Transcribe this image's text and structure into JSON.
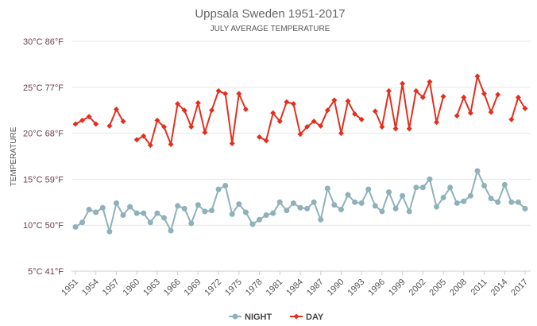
{
  "chart_data": {
    "type": "line",
    "title": "Uppsala Sweden 1951-2017",
    "subtitle": "JULY AVERAGE TEMPERATURE",
    "ylabel": "TEMPERATURE",
    "xlabel": "",
    "ylim": [
      5,
      30
    ],
    "yticks": [
      {
        "value": 5,
        "label": "5°C 41°F"
      },
      {
        "value": 10,
        "label": "10°C 50°F"
      },
      {
        "value": 15,
        "label": "15°C 59°F"
      },
      {
        "value": 20,
        "label": "20°C 68°F"
      },
      {
        "value": 25,
        "label": "25°C 77°F"
      },
      {
        "value": 30,
        "label": "30°C 86°F"
      }
    ],
    "xticks": [
      1951,
      1954,
      1957,
      1960,
      1963,
      1966,
      1969,
      1972,
      1975,
      1978,
      1981,
      1984,
      1987,
      1990,
      1993,
      1996,
      1999,
      2002,
      2005,
      2008,
      2011,
      2014,
      2017
    ],
    "grid": "horizontal",
    "legend_position": "bottom",
    "x_start": 1951,
    "series": [
      {
        "name": "NIGHT",
        "color": "#8fb1b9",
        "marker": "circle",
        "values": [
          9.8,
          10.3,
          11.7,
          11.4,
          11.9,
          9.3,
          12.4,
          11.1,
          12.0,
          11.3,
          11.3,
          10.3,
          11.3,
          10.8,
          9.4,
          12.1,
          11.8,
          10.2,
          12.2,
          11.5,
          11.6,
          13.9,
          14.3,
          11.2,
          12.3,
          11.4,
          10.1,
          10.6,
          11.1,
          11.3,
          12.5,
          11.6,
          12.4,
          11.9,
          11.8,
          12.5,
          10.6,
          14.0,
          12.2,
          11.7,
          13.3,
          12.5,
          12.4,
          13.9,
          12.1,
          11.5,
          13.6,
          11.8,
          13.2,
          11.5,
          14.1,
          14.1,
          15.0,
          12.0,
          13.0,
          14.1,
          12.4,
          12.6,
          13.2,
          15.9,
          14.3,
          12.9,
          12.5,
          14.4,
          12.5,
          12.5,
          11.8
        ]
      },
      {
        "name": "DAY",
        "color": "#e2301f",
        "marker": "diamond",
        "values": [
          21.0,
          21.4,
          21.8,
          21.0,
          null,
          20.8,
          22.6,
          21.3,
          null,
          19.3,
          19.7,
          18.7,
          21.4,
          20.7,
          18.8,
          23.2,
          22.5,
          20.7,
          23.3,
          20.1,
          22.5,
          24.6,
          24.3,
          18.9,
          24.3,
          22.6,
          null,
          19.6,
          19.2,
          22.2,
          21.3,
          23.4,
          23.2,
          19.9,
          20.7,
          21.3,
          20.8,
          22.5,
          23.6,
          20.0,
          23.5,
          22.1,
          21.5,
          null,
          22.4,
          20.7,
          24.6,
          20.5,
          25.4,
          20.5,
          24.6,
          23.9,
          25.6,
          21.2,
          24.0,
          null,
          21.9,
          23.9,
          22.2,
          26.2,
          24.3,
          22.3,
          24.2,
          null,
          21.5,
          23.9,
          22.7
        ]
      }
    ]
  }
}
